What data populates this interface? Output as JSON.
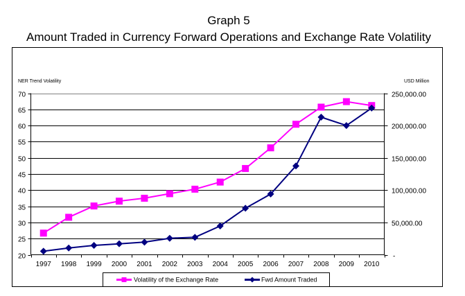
{
  "chart_data": {
    "type": "line",
    "title": "Graph 5",
    "subtitle": "Amount Traded in Currency Forward Operations and Exchange Rate Volatility",
    "ylabel_left": "NER Trend Volatility",
    "ylabel_right": "USD Million",
    "categories": [
      "1997",
      "1998",
      "1999",
      "2000",
      "2001",
      "2002",
      "2003",
      "2004",
      "2005",
      "2006",
      "2007",
      "2008",
      "2009",
      "2010"
    ],
    "y_left": {
      "range": [
        20,
        70
      ],
      "ticks": [
        "20",
        "25",
        "30",
        "35",
        "40",
        "45",
        "50",
        "55",
        "60",
        "65",
        "70"
      ]
    },
    "y_right": {
      "range": [
        0,
        250000
      ],
      "ticks": [
        "-",
        "50,000.00",
        "100,000.00",
        "150,000.00",
        "200,000.00",
        "250,000.00"
      ]
    },
    "grid": true,
    "legend_position": "bottom",
    "series": [
      {
        "name": "Volatility of the Exchange Rate",
        "axis": "left",
        "marker": "square",
        "color": "#FF00FF",
        "values": [
          26.7,
          31.6,
          35.1,
          36.6,
          37.5,
          38.9,
          40.3,
          42.5,
          46.7,
          53.1,
          60.4,
          65.7,
          67.4,
          66.2
        ]
      },
      {
        "name": "Fwd Amount Traded",
        "axis": "right",
        "marker": "diamond",
        "color": "#000080",
        "values": [
          5500,
          10500,
          14500,
          17000,
          19500,
          25500,
          27000,
          44500,
          72000,
          94000,
          137500,
          213000,
          200000,
          227000
        ]
      }
    ]
  }
}
